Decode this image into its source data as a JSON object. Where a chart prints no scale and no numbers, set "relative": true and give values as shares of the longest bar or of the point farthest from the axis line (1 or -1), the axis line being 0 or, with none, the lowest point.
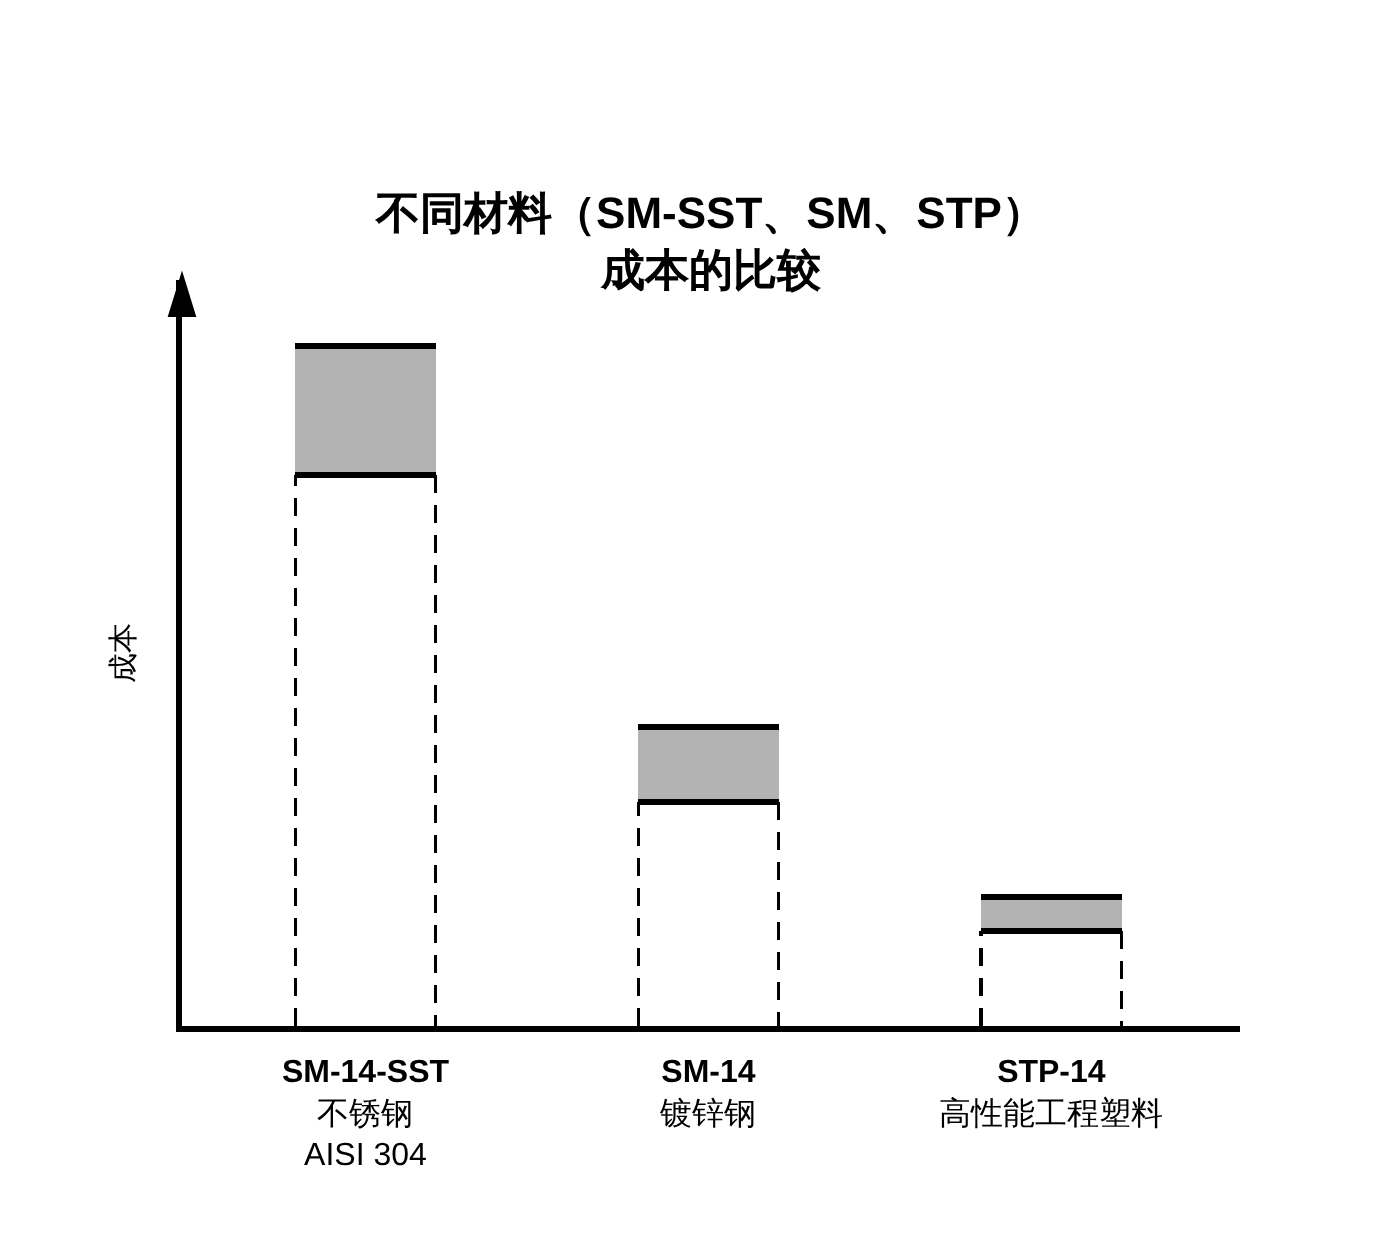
{
  "chart_data": {
    "type": "bar",
    "title": "不同材料（SM-SST、SM、STP）成本的比较",
    "ylabel": "成本",
    "categories": [
      "SM-14-SST\n不锈钢\nAISI 304",
      "SM-14\n镀锌钢",
      "STP-14\n高性能工程塑料"
    ],
    "stacked": true,
    "relative": true,
    "series": [
      {
        "color": "#ffffff",
        "line_style": "dashed",
        "values": [
          0.81,
          0.33,
          0.14
        ]
      },
      {
        "color": "#b3b3b3",
        "line_style": "solid",
        "values": [
          0.19,
          0.11,
          0.05
        ]
      }
    ]
  }
}
